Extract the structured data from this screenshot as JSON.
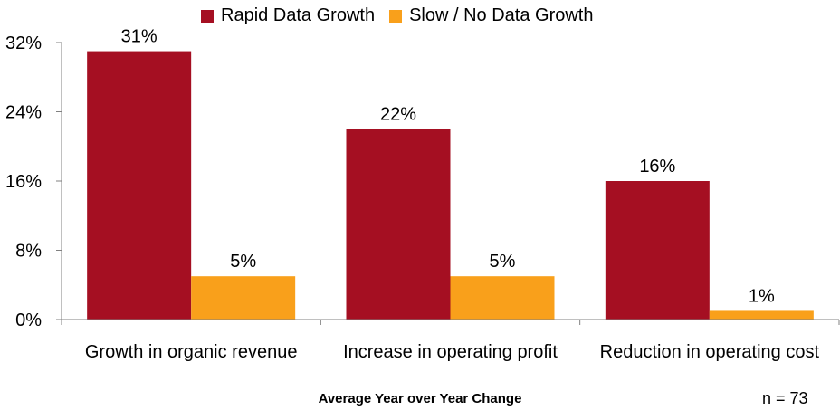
{
  "chart_data": {
    "type": "bar",
    "categories": [
      "Growth in organic revenue",
      "Increase in operating profit",
      "Reduction in operating cost"
    ],
    "series": [
      {
        "name": "Rapid Data Growth",
        "values": [
          31,
          22,
          16
        ],
        "labels": [
          "31%",
          "22%",
          "16%"
        ],
        "color": "#A50F22"
      },
      {
        "name": "Slow / No Data Growth",
        "values": [
          5,
          5,
          1
        ],
        "labels": [
          "5%",
          "5%",
          "1%"
        ],
        "color": "#F9A01B"
      }
    ],
    "yticks": [
      0,
      8,
      16,
      24,
      32
    ],
    "ytick_labels": [
      "0%",
      "8%",
      "16%",
      "24%",
      "32%"
    ],
    "ylim": [
      0,
      32
    ],
    "xlabel": "Average Year over Year Change",
    "ylabel": "",
    "legend_position": "top",
    "grid": false
  },
  "note": "n = 73"
}
